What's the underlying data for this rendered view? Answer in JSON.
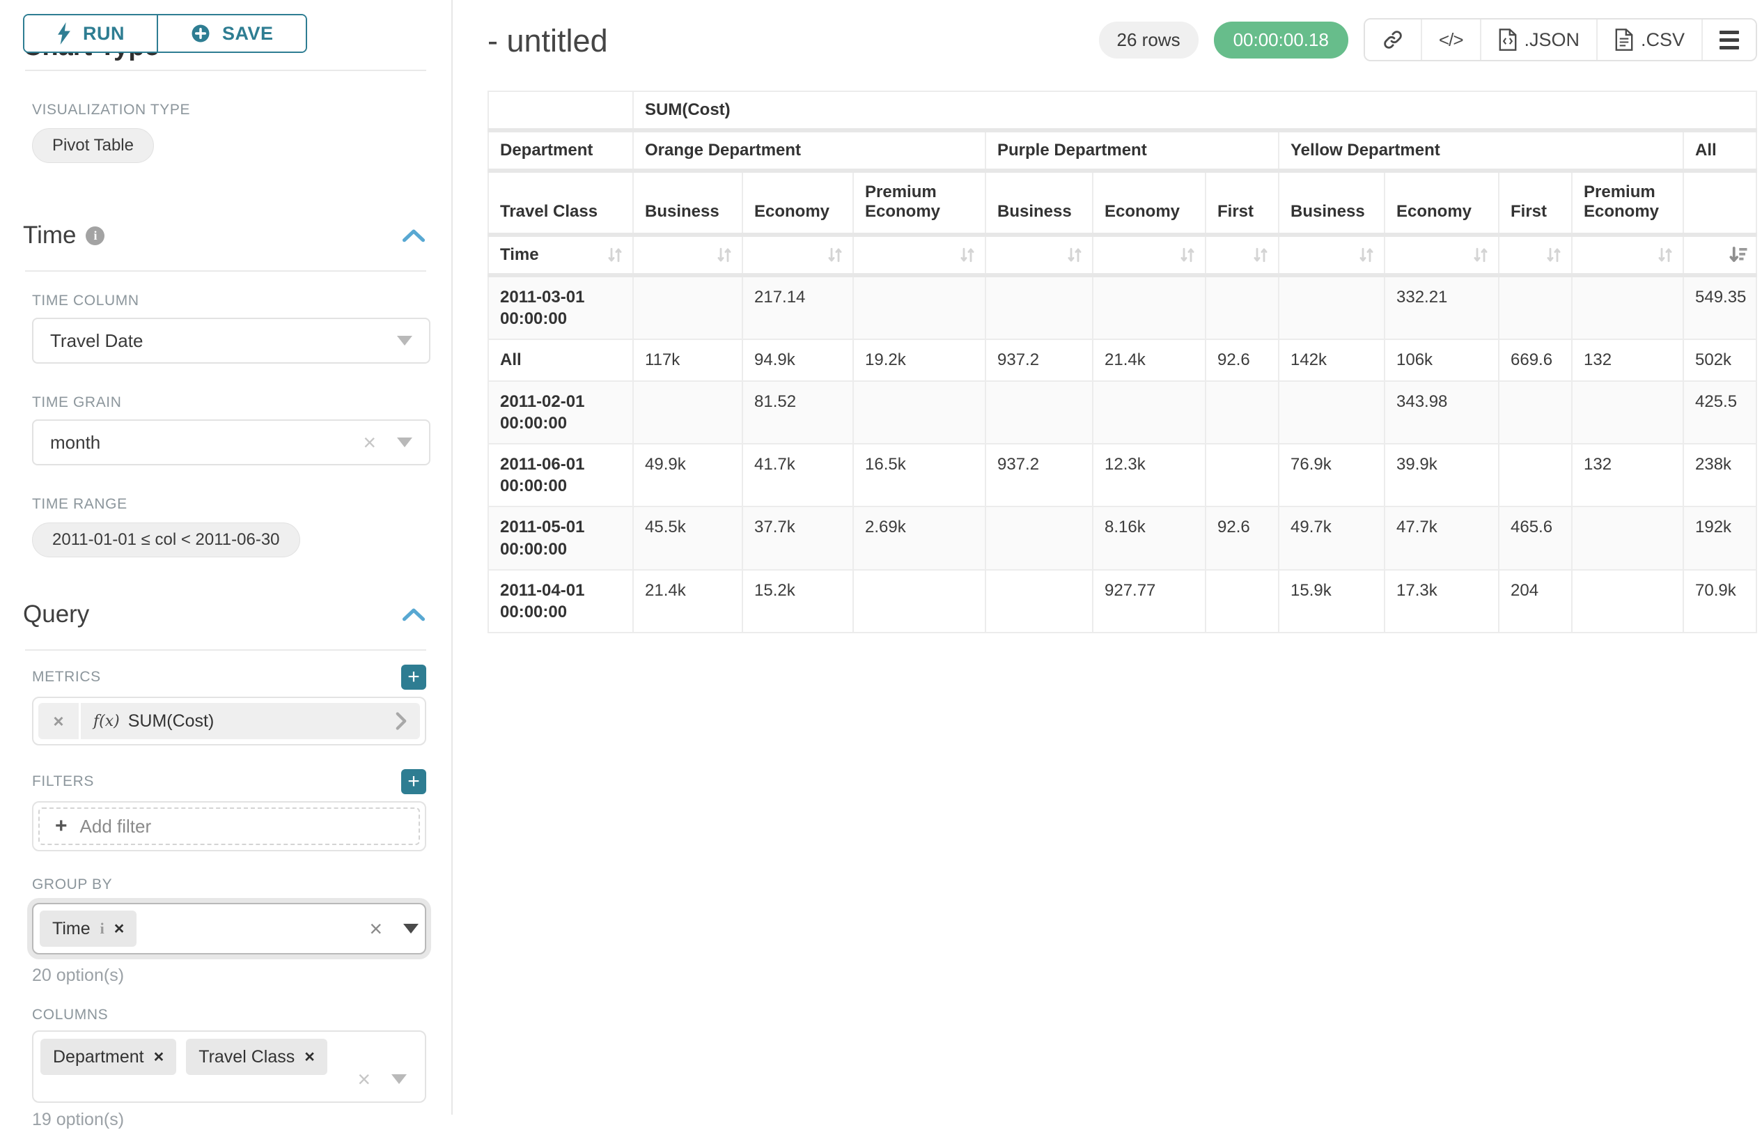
{
  "toolbar": {
    "run_label": "RUN",
    "save_label": "SAVE"
  },
  "sidebar": {
    "clipped_heading": "Chart Type",
    "viz_type": {
      "label": "VISUALIZATION TYPE",
      "value": "Pivot Table"
    },
    "time_section": {
      "title": "Time",
      "time_column": {
        "label": "TIME COLUMN",
        "value": "Travel Date"
      },
      "time_grain": {
        "label": "TIME GRAIN",
        "value": "month"
      },
      "time_range": {
        "label": "TIME RANGE",
        "value": "2011-01-01 ≤ col < 2011-06-30"
      }
    },
    "query_section": {
      "title": "Query",
      "metrics": {
        "label": "METRICS",
        "chip_fx": "f(x)",
        "chip_label": "SUM(Cost)"
      },
      "filters": {
        "label": "FILTERS",
        "placeholder": "Add filter"
      },
      "group_by": {
        "label": "GROUP BY",
        "chip": "Time",
        "chip_info": "i",
        "hint": "20 option(s)"
      },
      "columns": {
        "label": "COLUMNS",
        "chips": [
          "Department",
          "Travel Class"
        ],
        "hint": "19 option(s)"
      }
    }
  },
  "header": {
    "title": "- untitled",
    "rows_badge": "26 rows",
    "timer_badge": "00:00:00.18",
    "json_label": ".JSON",
    "csv_label": ".CSV",
    "code_icon_glyph": "</>"
  },
  "colors": {
    "accent_teal": "#2e7d92",
    "chevron_blue": "#58a8d2",
    "timer_green": "#67bd8b"
  },
  "pivot": {
    "metric_header": "SUM(Cost)",
    "department_row_label": "Department",
    "travel_class_row_label": "Travel Class",
    "time_row_label": "Time",
    "groups": [
      {
        "name": "Orange Department",
        "cols": [
          "Business",
          "Economy",
          "Premium Economy"
        ]
      },
      {
        "name": "Purple Department",
        "cols": [
          "Business",
          "Economy",
          "First"
        ]
      },
      {
        "name": "Yellow Department",
        "cols": [
          "Business",
          "Economy",
          "First",
          "Premium Economy"
        ]
      },
      {
        "name": "All",
        "cols": [
          ""
        ]
      }
    ],
    "rows": [
      {
        "label": "2011-03-01 00:00:00",
        "values": [
          "",
          "217.14",
          "",
          "",
          "",
          "",
          "",
          "332.21",
          "",
          "",
          "549.35"
        ]
      },
      {
        "label": "All",
        "values": [
          "117k",
          "94.9k",
          "19.2k",
          "937.2",
          "21.4k",
          "92.6",
          "142k",
          "106k",
          "669.6",
          "132",
          "502k"
        ]
      },
      {
        "label": "2011-02-01 00:00:00",
        "values": [
          "",
          "81.52",
          "",
          "",
          "",
          "",
          "",
          "343.98",
          "",
          "",
          "425.5"
        ]
      },
      {
        "label": "2011-06-01 00:00:00",
        "values": [
          "49.9k",
          "41.7k",
          "16.5k",
          "937.2",
          "12.3k",
          "",
          "76.9k",
          "39.9k",
          "",
          "132",
          "238k"
        ]
      },
      {
        "label": "2011-05-01 00:00:00",
        "values": [
          "45.5k",
          "37.7k",
          "2.69k",
          "",
          "8.16k",
          "92.6",
          "49.7k",
          "47.7k",
          "465.6",
          "",
          "192k"
        ]
      },
      {
        "label": "2011-04-01 00:00:00",
        "values": [
          "21.4k",
          "15.2k",
          "",
          "",
          "927.77",
          "",
          "15.9k",
          "17.3k",
          "204",
          "",
          "70.9k"
        ]
      }
    ]
  }
}
